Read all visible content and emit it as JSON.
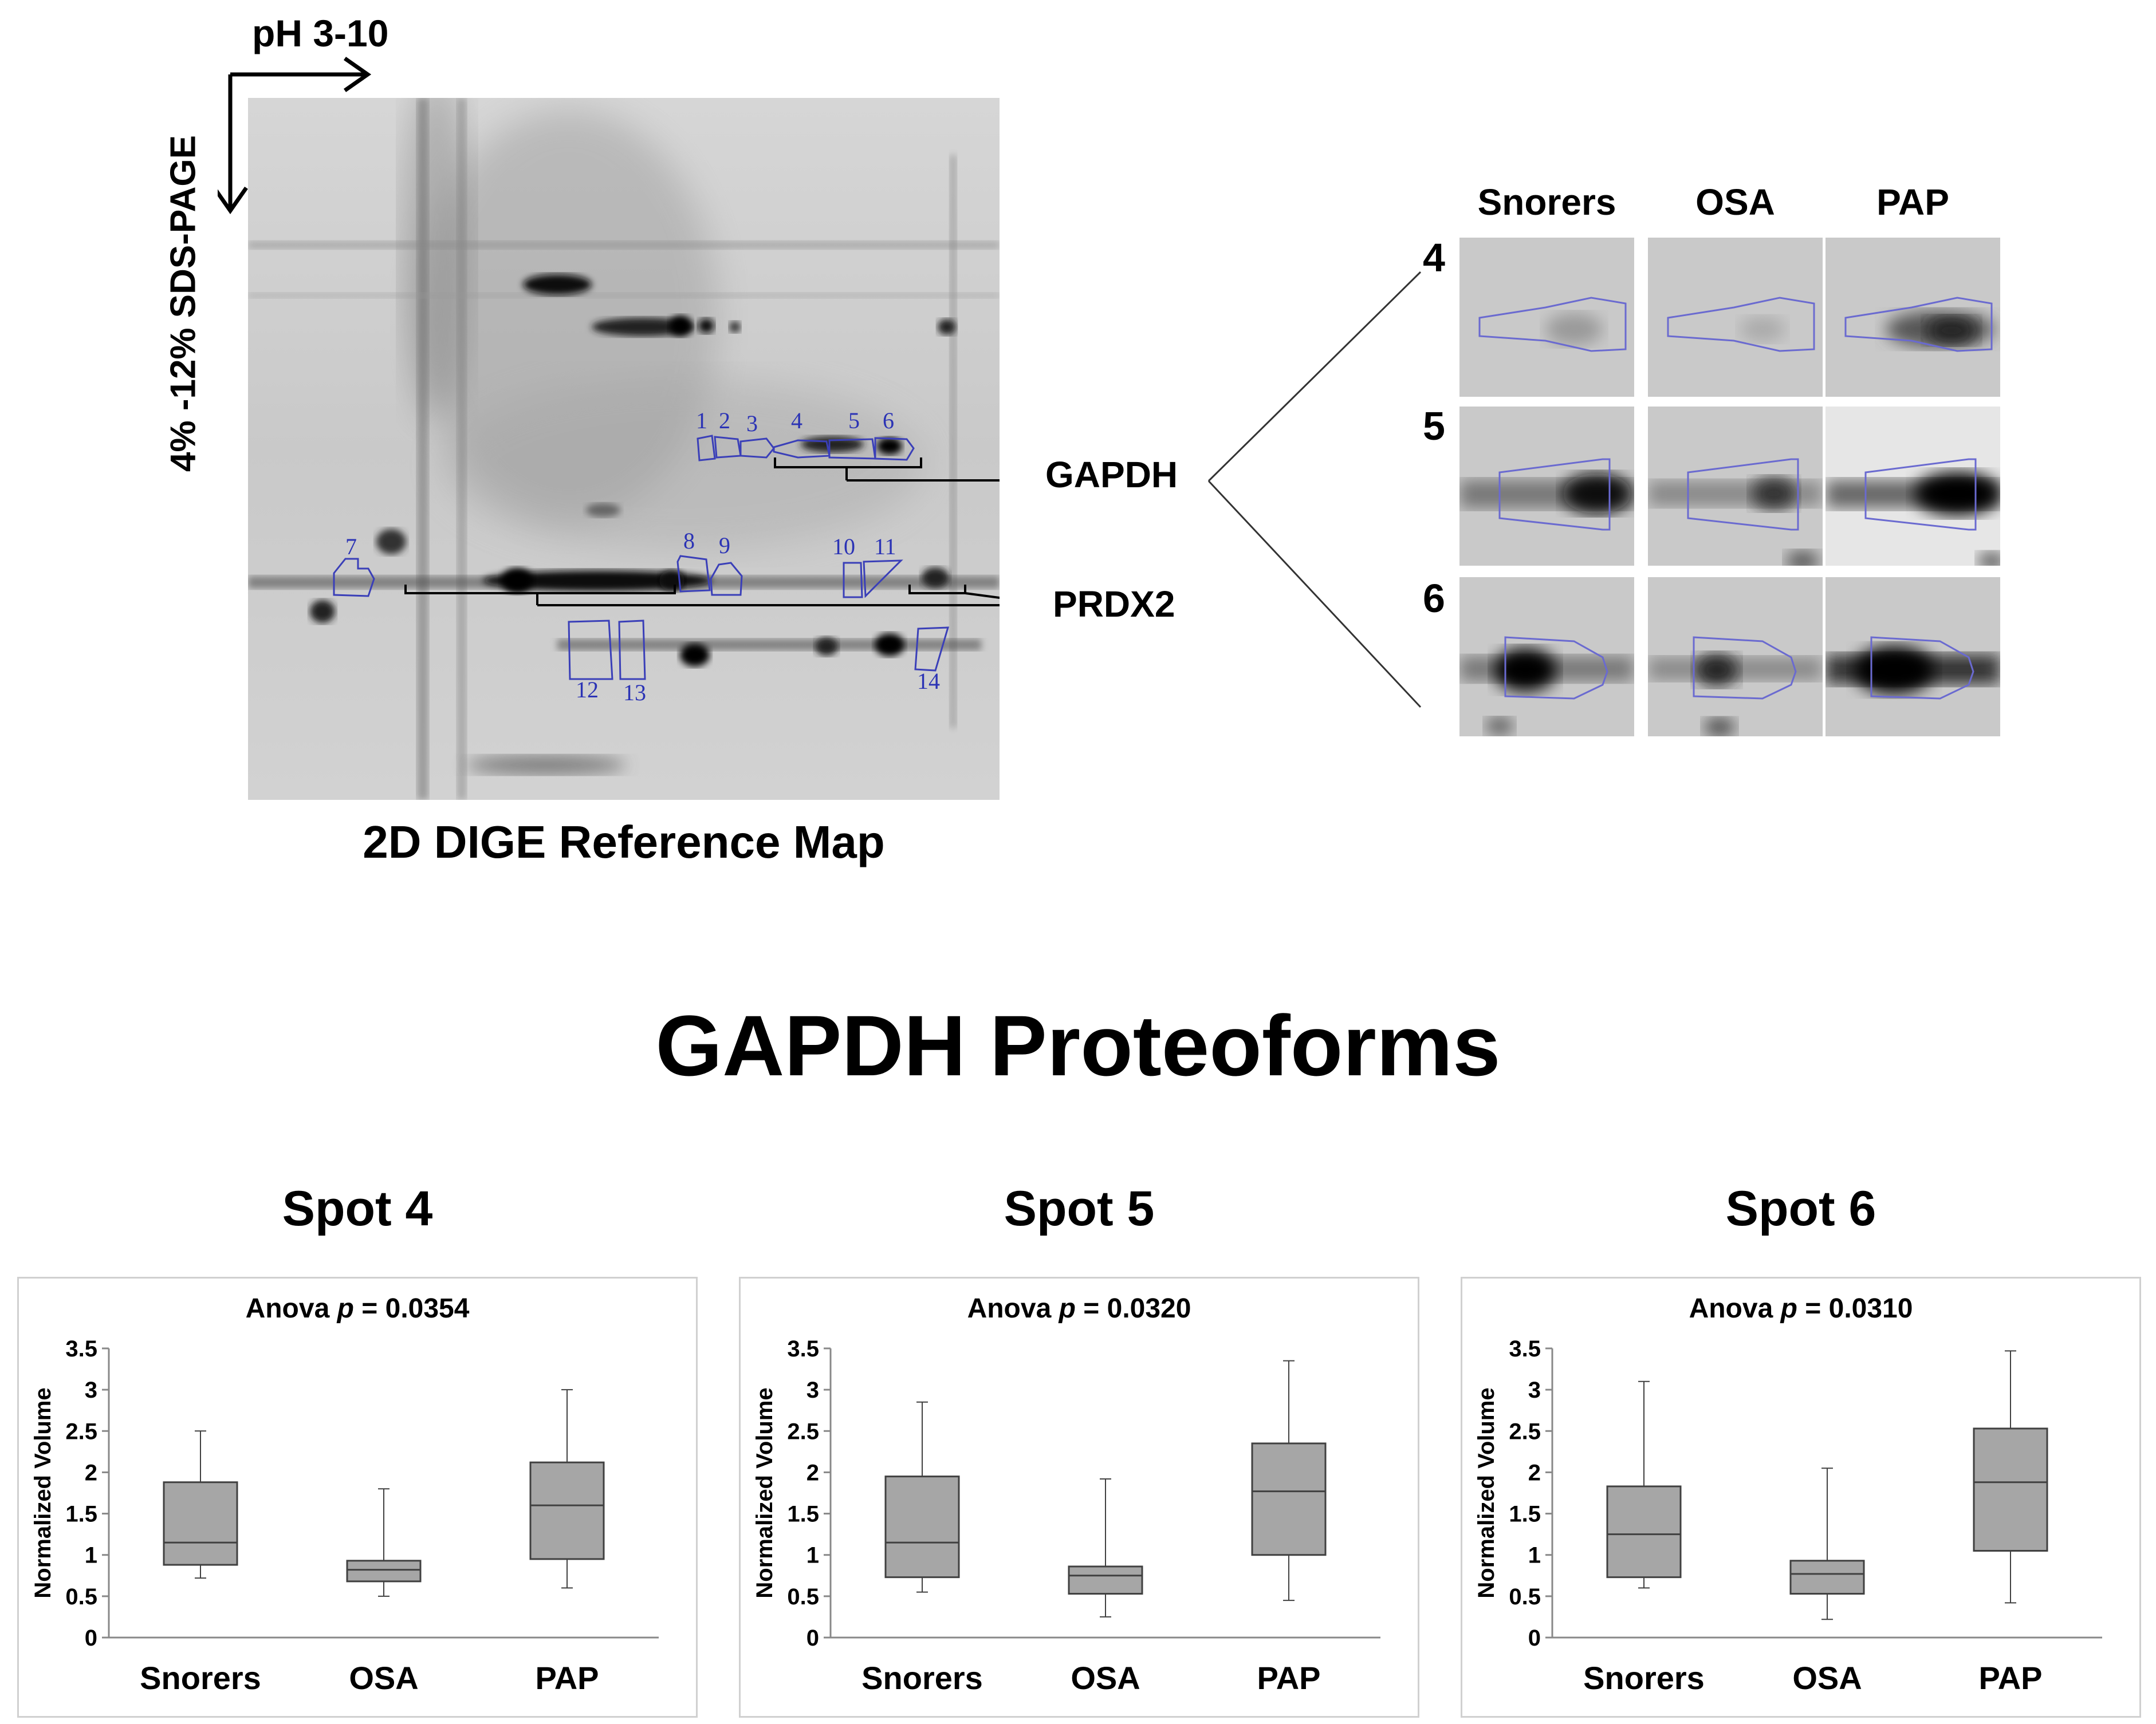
{
  "gel": {
    "ph_label": "pH 3-10",
    "sds_label": "4% -12% SDS-PAGE",
    "caption": "2D DIGE Reference Map",
    "spot_numbers": [
      "1",
      "2",
      "3",
      "4",
      "5",
      "6",
      "7",
      "8",
      "9",
      "10",
      "11",
      "12",
      "13",
      "14"
    ],
    "gapdh_label": "GAPDH",
    "prdx2_label": "PRDX2"
  },
  "zoom": {
    "columns": [
      "Snorers",
      "OSA",
      "PAP"
    ],
    "rows": [
      "4",
      "5",
      "6"
    ]
  },
  "main_title": "GAPDH Proteoforms",
  "colors": {
    "box_fill": "#a6a6a6",
    "box_stroke": "#404040",
    "spot_outline": "#3a3fb8",
    "axis": "#888888"
  },
  "chart_data": [
    {
      "type": "boxplot",
      "title": "Spot 4",
      "subtitle_prefix": "Anova ",
      "subtitle_p": "p",
      "subtitle_value": " = 0.0354",
      "ylabel": "Normalized Volume",
      "ylim": [
        0,
        3.5
      ],
      "yticks": [
        "0",
        "0.5",
        "1",
        "1.5",
        "2",
        "2.5",
        "3",
        "3.5"
      ],
      "categories": [
        "Snorers",
        "OSA",
        "PAP"
      ],
      "boxes": [
        {
          "min": 0.72,
          "q1": 0.88,
          "median": 1.15,
          "q3": 1.88,
          "max": 2.5
        },
        {
          "min": 0.5,
          "q1": 0.68,
          "median": 0.82,
          "q3": 0.93,
          "max": 1.8
        },
        {
          "min": 0.6,
          "q1": 0.95,
          "median": 1.6,
          "q3": 2.12,
          "max": 3.0
        }
      ]
    },
    {
      "type": "boxplot",
      "title": "Spot 5",
      "subtitle_prefix": "Anova ",
      "subtitle_p": "p",
      "subtitle_value": " = 0.0320",
      "ylabel": "Normalized Volume",
      "ylim": [
        0,
        3.5
      ],
      "yticks": [
        "0",
        "0.5",
        "1",
        "1.5",
        "2",
        "2.5",
        "3",
        "3.5"
      ],
      "categories": [
        "Snorers",
        "OSA",
        "PAP"
      ],
      "boxes": [
        {
          "min": 0.55,
          "q1": 0.73,
          "median": 1.15,
          "q3": 1.95,
          "max": 2.85
        },
        {
          "min": 0.25,
          "q1": 0.53,
          "median": 0.75,
          "q3": 0.86,
          "max": 1.92
        },
        {
          "min": 0.45,
          "q1": 1.0,
          "median": 1.77,
          "q3": 2.35,
          "max": 3.35
        }
      ]
    },
    {
      "type": "boxplot",
      "title": "Spot 6",
      "subtitle_prefix": "Anova ",
      "subtitle_p": "p",
      "subtitle_value": " = 0.0310",
      "ylabel": "Normalized Volume",
      "ylim": [
        0,
        3.5
      ],
      "yticks": [
        "0",
        "0.5",
        "1",
        "1.5",
        "2",
        "2.5",
        "3",
        "3.5"
      ],
      "categories": [
        "Snorers",
        "OSA",
        "PAP"
      ],
      "boxes": [
        {
          "min": 0.6,
          "q1": 0.73,
          "median": 1.25,
          "q3": 1.83,
          "max": 3.1
        },
        {
          "min": 0.22,
          "q1": 0.53,
          "median": 0.77,
          "q3": 0.93,
          "max": 2.05
        },
        {
          "min": 0.42,
          "q1": 1.05,
          "median": 1.88,
          "q3": 2.53,
          "max": 3.47
        }
      ]
    }
  ]
}
